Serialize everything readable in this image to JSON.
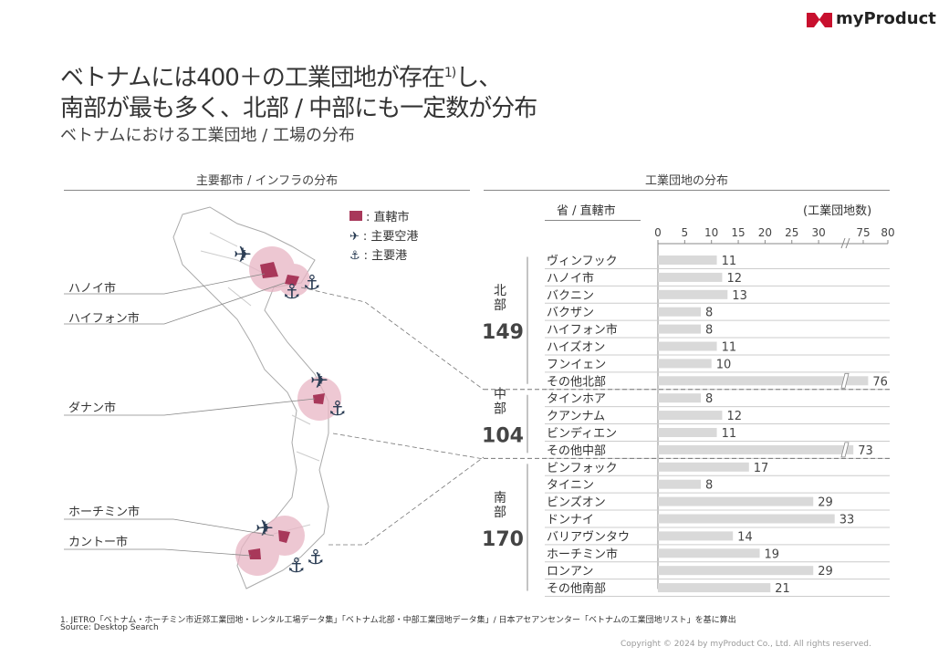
{
  "brand": {
    "name": "myProduct",
    "color": "#c8102e"
  },
  "title": {
    "line1": "ベトナムには400＋の工業団地が存在",
    "sup": "1)",
    "line1b": "し、",
    "line2": "南部が最も多く、北部 / 中部にも一定数が分布",
    "subtitle": "ベトナムにおける工業団地 / 工場の分布"
  },
  "map": {
    "heading": "主要都市 / インフラの分布",
    "legend": [
      {
        "icon": "square-icon",
        "label": ": 直轄市"
      },
      {
        "icon": "airplane-icon",
        "label": ": 主要空港"
      },
      {
        "icon": "anchor-icon",
        "label": ": 主要港"
      }
    ],
    "cities": [
      "ハノイ市",
      "ハイフォン市",
      "ダナン市",
      "ホーチミン市",
      "カントー市"
    ],
    "colors": {
      "city": "#a8385a",
      "circle": "#e8b5c4",
      "icon": "#2c3e55"
    }
  },
  "chart_data": {
    "type": "bar",
    "title": "工業団地の分布",
    "category_header": "省 / 直轄市",
    "unit_label": "(工業団地数)",
    "xticks": [
      0,
      5,
      10,
      15,
      20,
      25,
      30,
      75,
      80
    ],
    "axis_break": [
      35,
      70
    ],
    "xlim": [
      0,
      80
    ],
    "groups": [
      {
        "name": "北\n部",
        "total": "149",
        "start": 0,
        "count": 8
      },
      {
        "name": "中\n部",
        "total": "104",
        "start": 8,
        "count": 4
      },
      {
        "name": "南\n部",
        "total": "170",
        "start": 12,
        "count": 8
      }
    ],
    "categories": [
      "ヴィンフック",
      "ハノイ市",
      "バクニン",
      "バクザン",
      "ハイフォン市",
      "ハイズオン",
      "フンイェン",
      "その他北部",
      "タインホア",
      "クアンナム",
      "ビンディエン",
      "その他中部",
      "ビンフォック",
      "タイニン",
      "ビンズオン",
      "ドンナイ",
      "バリアヴンタウ",
      "ホーチミン市",
      "ロンアン",
      "その他南部"
    ],
    "values": [
      11,
      12,
      13,
      8,
      8,
      11,
      10,
      76,
      8,
      12,
      11,
      73,
      17,
      8,
      29,
      33,
      14,
      19,
      29,
      21
    ],
    "bar_color": "#d9d9d9"
  },
  "footer": {
    "note": "1. JETRO「ベトナム・ホーチミン市近郊工業団地・レンタル工場データ集」「ベトナム北部・中部工業団地データ集」/ 日本アセアンセンター「ベトナムの工業団地リスト」を基に算出",
    "source": "Source: Desktop Search",
    "copyright": "Copyright © 2024 by myProduct Co., Ltd.  All rights reserved."
  }
}
